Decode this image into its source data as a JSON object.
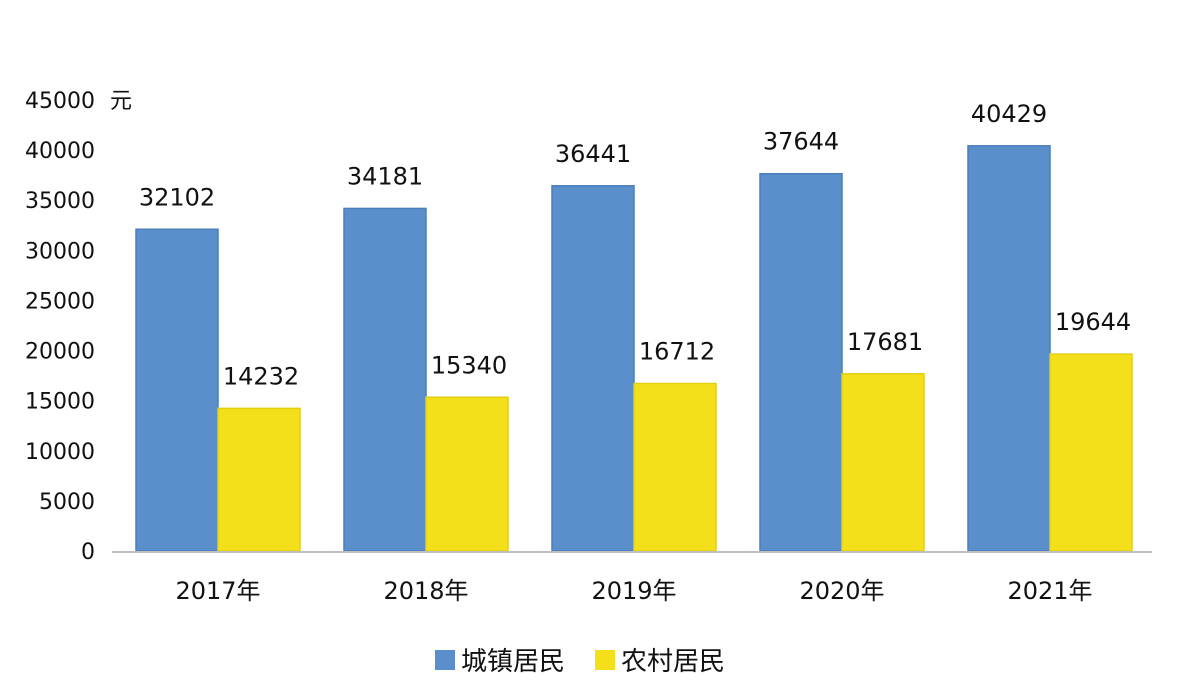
{
  "chart_data": {
    "type": "bar",
    "categories": [
      "2017年",
      "2018年",
      "2019年",
      "2020年",
      "2021年"
    ],
    "series": [
      {
        "name": "城镇居民",
        "values": [
          32102,
          34181,
          36441,
          37644,
          40429
        ],
        "color": "#5b8fcb"
      },
      {
        "name": "农村居民",
        "values": [
          14232,
          15340,
          16712,
          17681,
          19644
        ],
        "color": "#f4e01a"
      }
    ],
    "ylim": [
      0,
      45000
    ],
    "yticks": [
      "0",
      "5000",
      "10000",
      "15000",
      "20000",
      "25000",
      "30000",
      "35000",
      "40000",
      "45000"
    ],
    "yunit": "元",
    "grid": false,
    "legend": "bottom-center",
    "data_labels": true
  }
}
